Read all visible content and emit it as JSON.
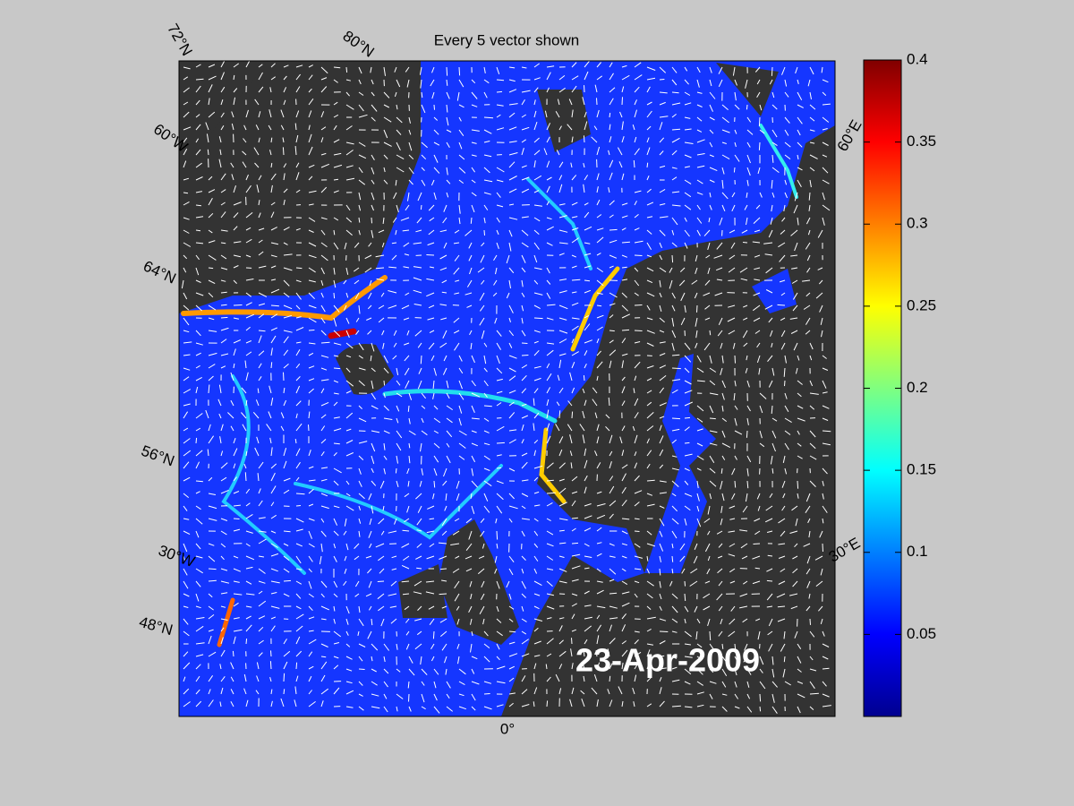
{
  "title": "Every 5 vector shown",
  "date_label": "23-Apr-2009",
  "graticule_labels": [
    "72°N",
    "80°N",
    "60°W",
    "64°N",
    "56°N",
    "30°W",
    "48°N",
    "0°",
    "30°E",
    "60°E"
  ],
  "colorbar": {
    "lim": [
      0,
      0.4
    ],
    "ticks": [
      0.05,
      0.1,
      0.15,
      0.2,
      0.25,
      0.3,
      0.35,
      0.4
    ]
  }
}
